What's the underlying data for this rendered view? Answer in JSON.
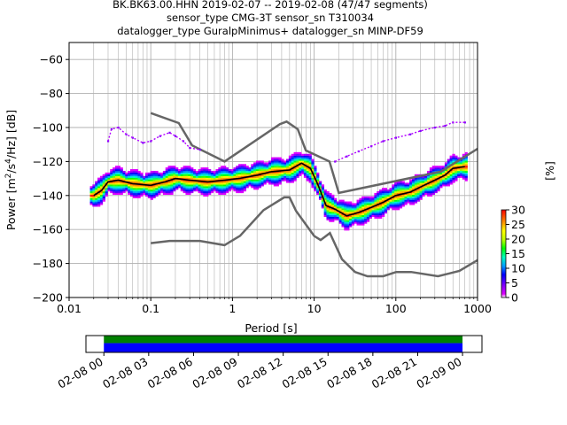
{
  "title": {
    "line1": "BK.BK63.00.HHN   2019-02-07 -- 2019-02-08  (47/47 segments)",
    "line2": "sensor_type CMG-3T sensor_sn T310034",
    "line3": "datalogger_type GuralpMinimus+ datalogger_sn MINP-DF59"
  },
  "chart_data": [
    {
      "type": "heatmap",
      "title": "BK.BK63.00.HHN   2019-02-07 -- 2019-02-08  (47/47 segments)",
      "xlabel": "Period [s]",
      "ylabel": "Power [m²/s⁴/Hz] [dB]",
      "x_scale": "log",
      "xlim": [
        0.01,
        1000
      ],
      "ylim": [
        -200,
        -50
      ],
      "x_ticks": [
        "0.01",
        "0.1",
        "1",
        "10",
        "100",
        "1000"
      ],
      "y_ticks": [
        "-200",
        "-180",
        "-160",
        "-140",
        "-120",
        "-100",
        "-80",
        "-60"
      ],
      "grid": true,
      "colorbar": {
        "label": "[%]",
        "range": [
          0,
          30
        ],
        "ticks": [
          "0",
          "5",
          "10",
          "15",
          "20",
          "25",
          "30"
        ]
      },
      "mean_curve": {
        "x": [
          0.02,
          0.025,
          0.03,
          0.04,
          0.06,
          0.1,
          0.15,
          0.2,
          0.3,
          0.5,
          0.8,
          1.2,
          2,
          3,
          5,
          7,
          9,
          11,
          14,
          18,
          25,
          35,
          50,
          70,
          100,
          150,
          200,
          300,
          400,
          500,
          700
        ],
        "y": [
          -140,
          -137,
          -132,
          -131,
          -133,
          -134,
          -132,
          -130,
          -131,
          -132,
          -131,
          -130,
          -128,
          -126,
          -125,
          -121,
          -124,
          -133,
          -146,
          -148,
          -152,
          -150,
          -147,
          -144,
          -140,
          -138,
          -135,
          -131,
          -128,
          -124,
          -123
        ]
      },
      "spread_curves": [
        {
          "x": [
            0.03,
            0.033,
            0.04,
            0.05,
            0.06,
            0.08,
            0.1,
            0.13,
            0.17,
            0.2,
            0.25,
            0.3,
            0.4
          ],
          "y": [
            -108,
            -101,
            -100,
            -104,
            -106,
            -109,
            -108,
            -105,
            -103,
            -105,
            -108,
            -112,
            -113
          ]
        },
        {
          "x": [
            18,
            25,
            35,
            50,
            70,
            100,
            150,
            200,
            300,
            400,
            500,
            700
          ],
          "y": [
            -120,
            -117,
            -114,
            -111,
            -108,
            -106,
            -104,
            -102,
            -100,
            -99,
            -97,
            -97
          ]
        }
      ],
      "noise_models": {
        "high": {
          "x": [
            0.1,
            0.22,
            0.32,
            0.8,
            3.8,
            4.6,
            6.3,
            7.9,
            15.4,
            20,
            354.8,
            1000
          ],
          "y": [
            -91.5,
            -97.4,
            -110.5,
            -120,
            -98,
            -96.5,
            -101,
            -113.5,
            -120,
            -138.5,
            -126,
            -112.5
          ]
        },
        "low": {
          "x": [
            0.1,
            0.17,
            0.4,
            0.8,
            1.24,
            2.4,
            4.3,
            5,
            6,
            10,
            12,
            15.6,
            21.9,
            31.6,
            45,
            70,
            101,
            154,
            328,
            600,
            1000
          ],
          "y": [
            -168,
            -166.7,
            -166.7,
            -169.2,
            -163.7,
            -148.6,
            -141.1,
            -141.1,
            -149,
            -163.8,
            -166.2,
            -162.1,
            -177.5,
            -185,
            -187.5,
            -187.5,
            -185,
            -185,
            -187.5,
            -184.4,
            -178
          ]
        }
      }
    },
    {
      "type": "timeline",
      "x_ticks": [
        "02-08 00",
        "02-08 03",
        "02-08 06",
        "02-08 09",
        "02-08 12",
        "02-08 15",
        "02-08 18",
        "02-08 21",
        "02-09 00"
      ],
      "xlim_hours": [
        -1.2,
        25.3
      ],
      "coverage_hours": [
        0,
        24
      ],
      "colors": {
        "data_top": "#008000",
        "data_bottom": "#0000ff"
      }
    }
  ]
}
